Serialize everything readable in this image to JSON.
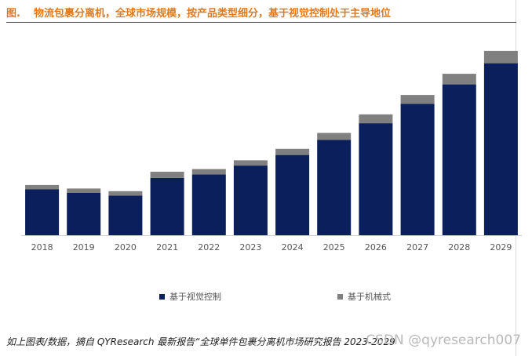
{
  "figure": {
    "label": "图.",
    "title": "物流包裹分离机，全球市场规模，按产品类型细分，基于视觉控制处于主导地位"
  },
  "colors": {
    "series_a": "#0b1f5c",
    "series_b": "#808080",
    "title": "#e07a1f"
  },
  "chart_data": {
    "type": "bar",
    "stacked": true,
    "categories": [
      "2018",
      "2019",
      "2020",
      "2021",
      "2022",
      "2023",
      "2024",
      "2025",
      "2026",
      "2027",
      "2028",
      "2029"
    ],
    "series": [
      {
        "name": "基于视觉控制",
        "color": "#0b1f5c",
        "values": [
          52,
          48,
          45,
          65,
          69,
          79,
          91,
          108,
          127,
          149,
          171,
          195
        ]
      },
      {
        "name": "基于机械式",
        "color": "#808080",
        "values": [
          5,
          5,
          5,
          7,
          6,
          6,
          7,
          8,
          10,
          10,
          12,
          14
        ]
      }
    ],
    "title": "",
    "xlabel": "",
    "ylabel": "",
    "ylim": [
      0,
      240
    ],
    "grid": false,
    "legend_position": "bottom"
  },
  "footer": {
    "source": "如上图表/数据，摘自 QYResearch 最新报告“全球单件包裹分离机市场研究报告 2023-2029",
    "watermark": "CSDN @qyresearch007"
  }
}
